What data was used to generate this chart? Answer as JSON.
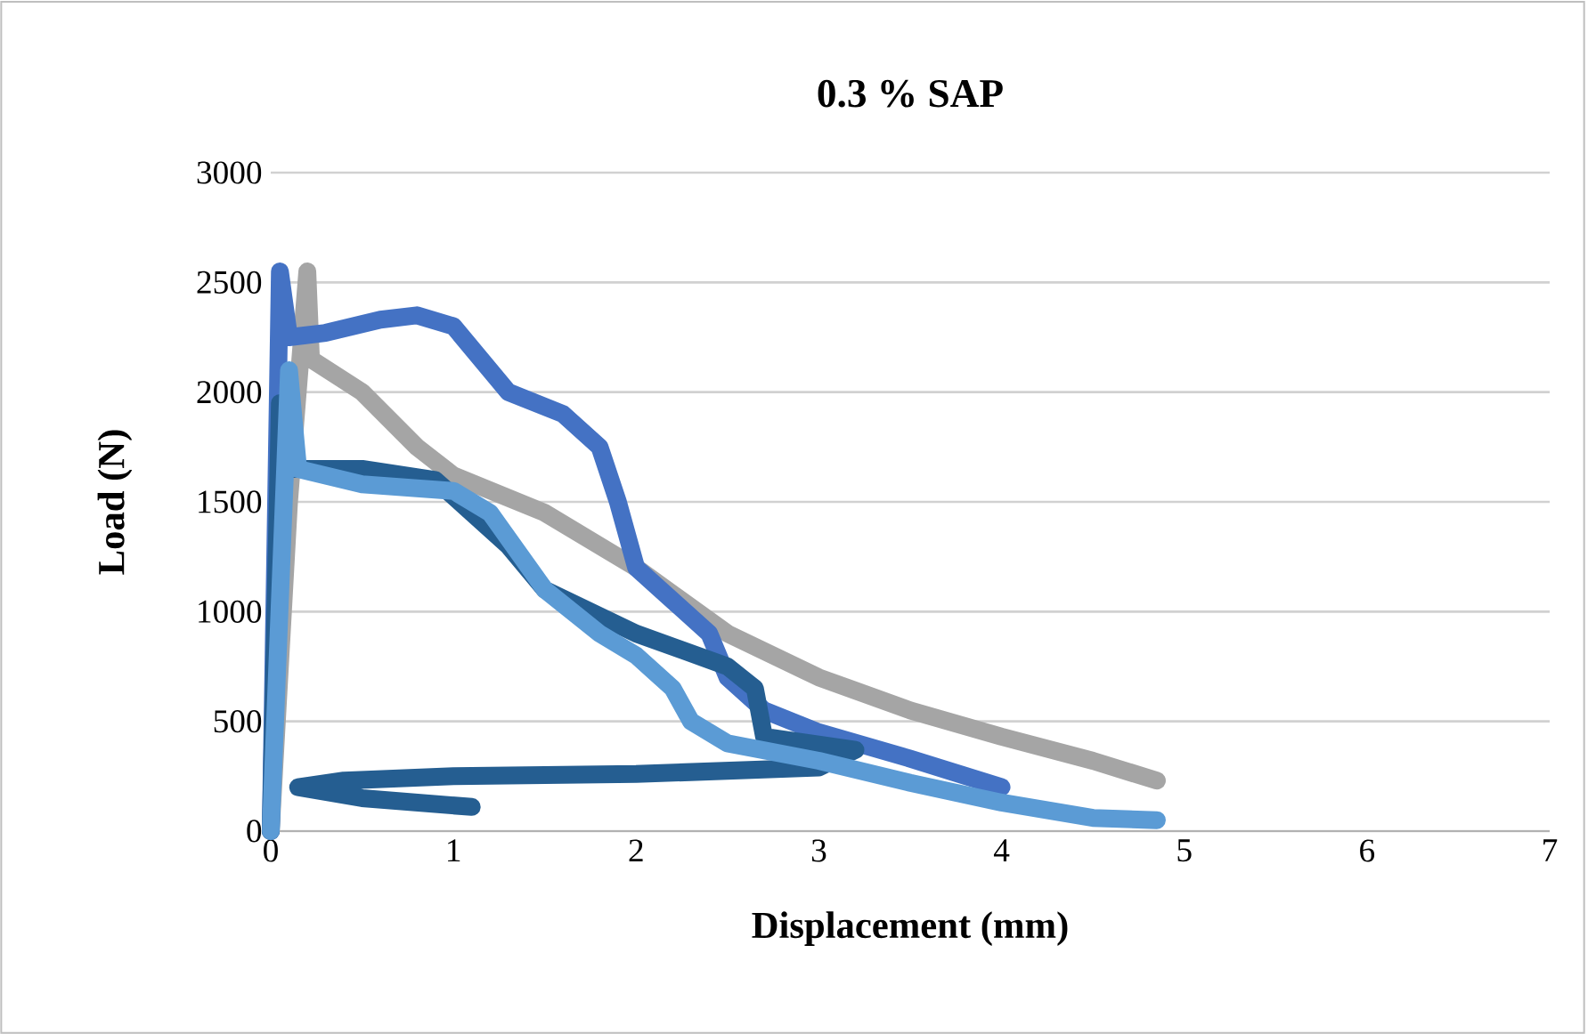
{
  "chart_data": {
    "type": "line",
    "title": "0.3 % SAP",
    "xlabel": "Displacement (mm)",
    "ylabel": "Load (N)",
    "xlim": [
      0,
      7
    ],
    "ylim": [
      0,
      3000
    ],
    "xticks": [
      0,
      1,
      2,
      3,
      4,
      5,
      6,
      7
    ],
    "yticks": [
      0,
      500,
      1000,
      1500,
      2000,
      2500,
      3000
    ],
    "grid": "y",
    "series": [
      {
        "color": "#a5a5a5",
        "x": [
          0,
          0.1,
          0.2,
          0.22,
          0.5,
          0.8,
          1,
          1.5,
          2,
          2.5,
          3,
          3.5,
          4,
          4.5,
          4.85
        ],
        "values": [
          0,
          1500,
          2550,
          2150,
          2000,
          1750,
          1620,
          1450,
          1200,
          900,
          700,
          550,
          430,
          320,
          230
        ]
      },
      {
        "color": "#4472c4",
        "x": [
          0,
          0.05,
          0.1,
          0.3,
          0.6,
          0.8,
          1,
          1.1,
          1.3,
          1.6,
          1.8,
          1.9,
          2,
          2.2,
          2.4,
          2.5,
          2.7,
          3,
          3.5,
          4
        ],
        "values": [
          0,
          2550,
          2250,
          2270,
          2330,
          2350,
          2300,
          2200,
          2000,
          1900,
          1750,
          1500,
          1200,
          1050,
          900,
          700,
          550,
          450,
          330,
          200
        ]
      },
      {
        "color": "#255e91",
        "x": [
          0,
          0.05,
          0.12,
          0.5,
          0.9,
          1.1,
          1.3,
          1.5,
          2,
          2.5,
          2.65,
          2.7,
          3.2,
          3,
          2,
          1,
          0.4,
          0.15,
          0.5,
          1.1
        ],
        "values": [
          0,
          1950,
          1650,
          1650,
          1600,
          1450,
          1300,
          1100,
          900,
          750,
          650,
          430,
          370,
          290,
          260,
          250,
          230,
          200,
          150,
          110
        ]
      },
      {
        "color": "#5b9bd5",
        "x": [
          0,
          0.1,
          0.15,
          0.5,
          1,
          1.2,
          1.5,
          1.8,
          2,
          2.2,
          2.3,
          2.5,
          3,
          3.5,
          4,
          4.5,
          4.85
        ],
        "values": [
          0,
          2100,
          1650,
          1580,
          1550,
          1450,
          1100,
          900,
          800,
          650,
          500,
          400,
          320,
          220,
          130,
          60,
          50
        ]
      }
    ]
  }
}
